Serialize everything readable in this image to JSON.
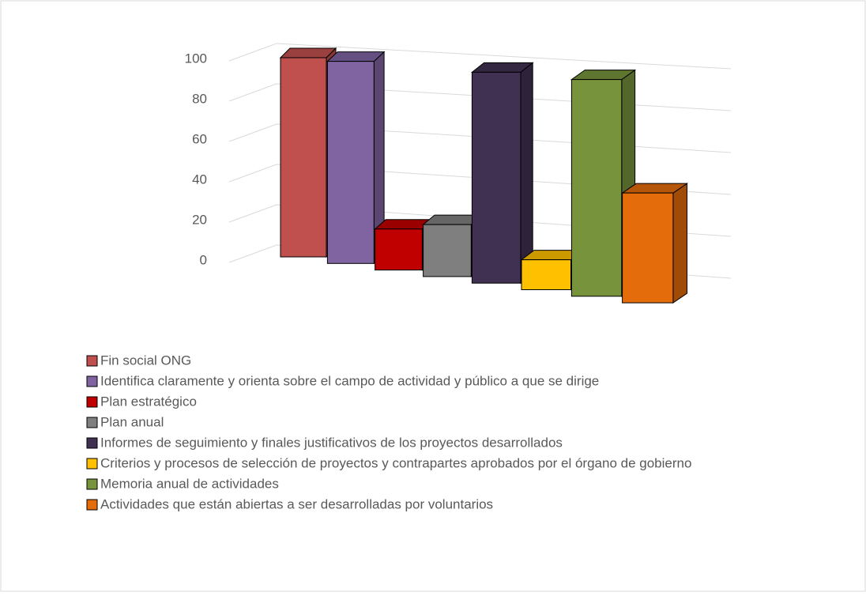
{
  "chart_data": {
    "type": "bar3d",
    "series": [
      {
        "name": "Fin social ONG",
        "color": "#c0504d",
        "values": [
          100
        ]
      },
      {
        "name": "Identifica claramente y orienta sobre el campo de actividad y público a que se dirige",
        "color": "#8064a2",
        "values": [
          100
        ]
      },
      {
        "name": "Plan estratégico",
        "color": "#c00000",
        "values": [
          20
        ]
      },
      {
        "name": "Plan anual",
        "color": "#7f7f7f",
        "values": [
          25
        ]
      },
      {
        "name": "Informes de seguimiento y finales justificativos de los proyectos desarrollados",
        "color": "#403152",
        "values": [
          100
        ]
      },
      {
        "name": "Criterios y procesos de selección de proyectos y contrapartes aprobados por el órgano de gobierno",
        "color": "#ffc000",
        "values": [
          14
        ]
      },
      {
        "name": "Memoria anual de actividades",
        "color": "#77933c",
        "values": [
          100
        ]
      },
      {
        "name": "Actividades que están abiertas a ser desarrolladas por voluntarios",
        "color": "#e46c0a",
        "values": [
          50
        ]
      }
    ],
    "ylim": [
      0,
      100
    ],
    "yticks": [
      0,
      20,
      40,
      60,
      80,
      100
    ],
    "grid": true
  }
}
